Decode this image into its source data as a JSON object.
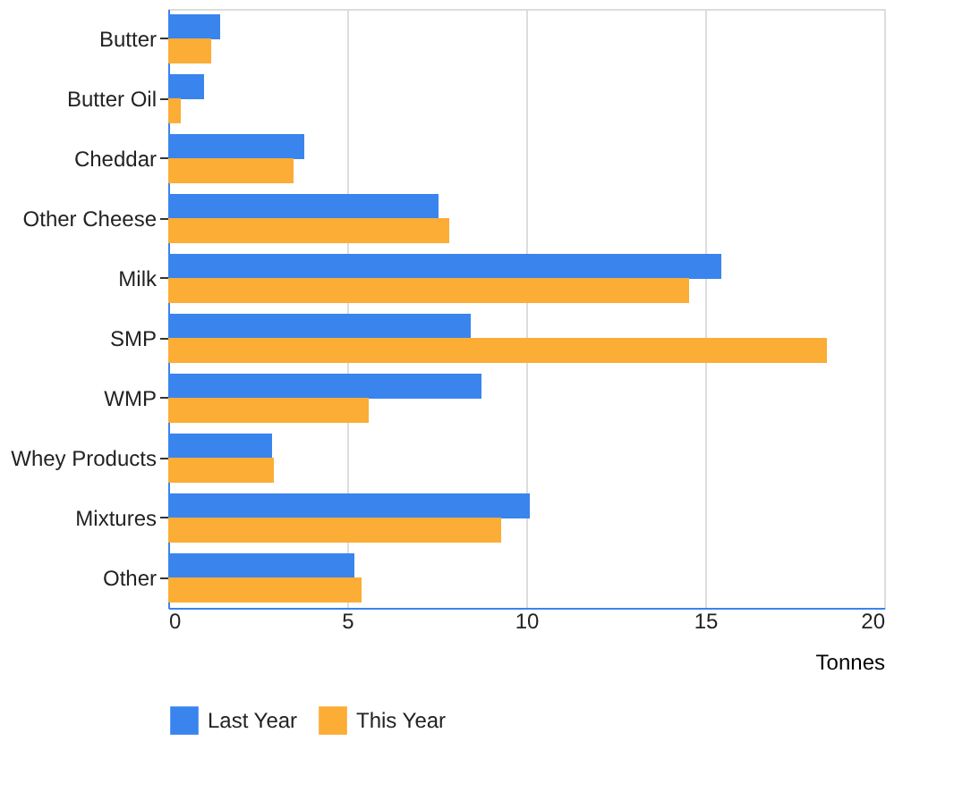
{
  "chart_data": {
    "type": "bar",
    "orientation": "horizontal",
    "categories": [
      "Butter",
      "Butter Oil",
      "Cheddar",
      "Other Cheese",
      "Milk",
      "SMP",
      "WMP",
      "Whey Products",
      "Mixtures",
      "Other"
    ],
    "series": [
      {
        "name": "Last Year",
        "color": "#3a84ee",
        "values": [
          1.45,
          1.0,
          3.8,
          7.55,
          15.45,
          8.45,
          8.75,
          2.9,
          10.1,
          5.2
        ]
      },
      {
        "name": "This Year",
        "color": "#fbad35",
        "values": [
          1.2,
          0.35,
          3.5,
          7.85,
          14.55,
          18.4,
          5.6,
          2.95,
          9.3,
          5.4
        ]
      }
    ],
    "xlabel": "Tonnes",
    "xlim": [
      0,
      20
    ],
    "xticks": [
      0,
      5,
      10,
      15,
      20
    ],
    "grid": "x",
    "legend": "bottom"
  }
}
